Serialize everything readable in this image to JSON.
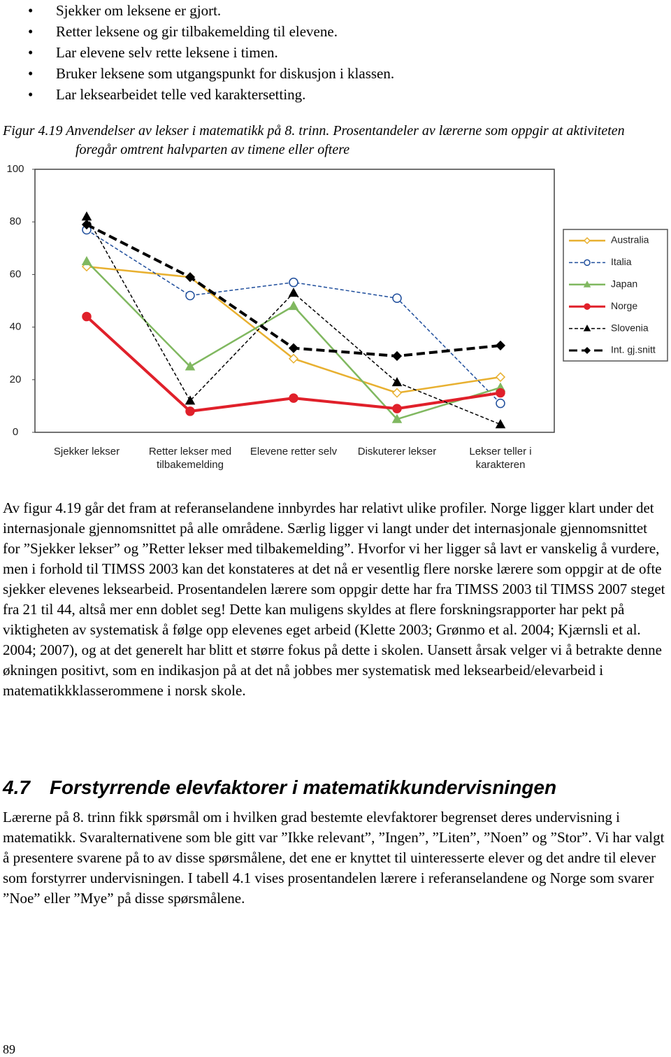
{
  "bullets": [
    "Sjekker om leksene er gjort.",
    "Retter leksene og gir tilbakemelding til elevene.",
    "Lar elevene selv rette leksene i timen.",
    "Bruker leksene som utgangspunkt for diskusjon i klassen.",
    "Lar leksearbeidet telle ved karaktersetting."
  ],
  "figure_caption": {
    "label": "Figur 4.19",
    "text": "Anvendelser av lekser i matematikk på 8. trinn. Prosentandeler av lærerne som oppgir at aktiviteten foregår omtrent halvparten av timene eller oftere"
  },
  "chart_data": {
    "type": "line",
    "categories": [
      "Sjekker lekser",
      "Retter lekser med tilbakemelding",
      "Elevene retter selv",
      "Diskuterer lekser",
      "Lekser teller i karakteren"
    ],
    "series": [
      {
        "name": "Australia",
        "color": "#e8b030",
        "line_style": "solid",
        "marker": "open-diamond",
        "values": [
          63,
          59,
          28,
          15,
          21
        ]
      },
      {
        "name": "Italia",
        "color": "#1f4e9c",
        "line_style": "dashed",
        "marker": "open-circle",
        "values": [
          77,
          52,
          57,
          51,
          11
        ]
      },
      {
        "name": "Japan",
        "color": "#80b860",
        "line_style": "solid",
        "marker": "triangle",
        "values": [
          65,
          25,
          48,
          5,
          17
        ]
      },
      {
        "name": "Norge",
        "color": "#e0202a",
        "line_style": "solid-thick",
        "marker": "circle",
        "values": [
          44,
          8,
          13,
          9,
          15
        ]
      },
      {
        "name": "Slovenia",
        "color": "#000000",
        "line_style": "dashed",
        "marker": "triangle",
        "values": [
          82,
          12,
          53,
          19,
          3
        ]
      },
      {
        "name": "Int. gj.snitt",
        "color": "#000000",
        "line_style": "dashed-thick",
        "marker": "diamond",
        "values": [
          79,
          59,
          32,
          29,
          33
        ]
      }
    ],
    "ylim": [
      0,
      100
    ],
    "yticks": [
      0,
      20,
      40,
      60,
      80,
      100
    ],
    "grid": false,
    "legend": "right"
  },
  "paragraph_1": "Av figur 4.19 går det fram at referanselandene innbyrdes har relativt ulike profiler. Norge ligger klart under det internasjonale gjennomsnittet på alle områdene. Særlig ligger vi langt under det internasjonale gjennomsnittet for ”Sjekker lekser” og ”Retter lekser med tilbakemelding”. Hvorfor vi her ligger så lavt er vanskelig å vurdere, men i forhold til TIMSS 2003 kan det konstateres at det nå er vesentlig flere norske lærere som oppgir at de ofte sjekker elevenes leksearbeid. Prosentandelen lærere som oppgir dette har fra TIMSS 2003 til TIMSS 2007 steget fra 21 til 44, altså mer enn doblet seg! Dette kan muligens skyldes at flere forskningsrapporter har pekt på viktigheten av systematisk å følge opp elevenes eget arbeid (Klette 2003; Grønmo et al. 2004; Kjærnsli et al. 2004; 2007), og at det generelt har blitt et større fokus på dette i skolen. Uansett årsak velger vi å betrakte denne økningen positivt, som en indikasjon på at det nå jobbes mer systematisk med leksearbeid/elevarbeid i matematikkklasserommene i norsk skole.",
  "section": {
    "number": "4.7",
    "title": "Forstyrrende elevfaktorer i matematikkundervisningen"
  },
  "paragraph_2": "Lærerne på 8. trinn fikk spørsmål om i hvilken grad bestemte elevfaktorer begrenset deres undervisning i matematikk. Svaralternativene som ble gitt var ”Ikke relevant”, ”Ingen”, ”Liten”, ”Noen” og ”Stor”. Vi har valgt å presentere svarene på to av disse spørsmålene, det ene er knyttet til uinteresserte elever og det andre til elever som forstyrrer undervisningen. I tabell 4.1 vises prosentandelen lærere i referanselandene og Norge som svarer ”Noe” eller ”Mye” på disse spørsmålene.",
  "page_number": "89"
}
